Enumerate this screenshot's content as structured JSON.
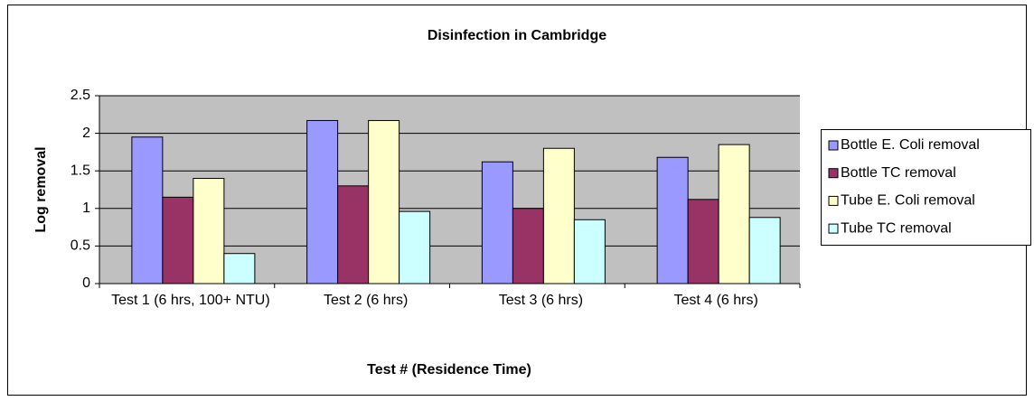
{
  "chart_data": {
    "type": "bar",
    "title": "Disinfection in Cambridge",
    "x_label": "Test # (Residence Time)",
    "y_label": "Log removal",
    "categories": [
      "Test 1 (6 hrs, 100+ NTU)",
      "Test 2 (6 hrs)",
      "Test 3 (6 hrs)",
      "Test 4 (6 hrs)"
    ],
    "series": [
      {
        "name": "Bottle E. Coli removal",
        "color": "#9999ff",
        "values": [
          1.95,
          2.17,
          1.62,
          1.68
        ]
      },
      {
        "name": "Bottle TC removal",
        "color": "#993366",
        "values": [
          1.15,
          1.3,
          1.0,
          1.12
        ]
      },
      {
        "name": "Tube E. Coli removal",
        "color": "#ffffcc",
        "values": [
          1.4,
          2.17,
          1.8,
          1.85
        ]
      },
      {
        "name": "Tube TC removal",
        "color": "#ccffff",
        "values": [
          0.4,
          0.96,
          0.85,
          0.88
        ]
      }
    ],
    "ylim": [
      0,
      2.5
    ],
    "yticks": [
      0,
      0.5,
      1,
      1.5,
      2,
      2.5
    ],
    "grid": true,
    "legend": "right"
  }
}
